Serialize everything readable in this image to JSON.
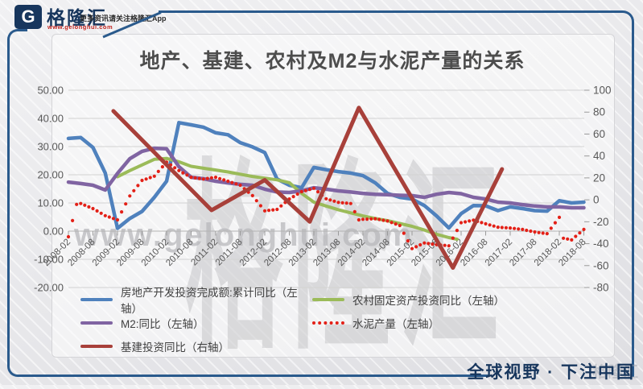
{
  "colors": {
    "frame": "#2a5a8c",
    "navy": "#17365d",
    "blue": "#4f81bd",
    "green": "#9bbb59",
    "purple": "#8064a2",
    "red": "#e32017",
    "darkred": "#a8403a"
  },
  "header": {
    "logo_letter": "G",
    "brand": "格隆汇",
    "brand_url": "www.gelonghui.com",
    "tagline": "更多资讯请关注格隆汇App"
  },
  "watermark": {
    "brand": "格隆汇",
    "url": "www.gelonghui.com",
    "corner": "格隆汇"
  },
  "footer": {
    "slogan": "全球视野 · 下注中国"
  },
  "chart_data": {
    "type": "line",
    "title": "地产、基建、农村及M2与水泥产量的关系",
    "x_axis_note": "monthly data from 2008-02 to 2018-08, x encoded as months since 2008-02",
    "x_tick_labels": [
      "2008-02",
      "2008-08",
      "2009-02",
      "2009-08",
      "2010-02",
      "2010-08",
      "2011-02",
      "2011-08",
      "2012-02",
      "2012-08",
      "2013-02",
      "2013-08",
      "2014-02",
      "2014-08",
      "2015-02",
      "2015-08",
      "2016-02",
      "2016-08",
      "2017-02",
      "2017-08",
      "2018-02",
      "2018-08"
    ],
    "left_axis": {
      "min": -20,
      "max": 50,
      "step": 10,
      "labels": [
        "50.00",
        "40.00",
        "30.00",
        "20.00",
        "10.00",
        "0.00",
        "-10.00",
        "-20.00"
      ]
    },
    "right_axis": {
      "min": -80,
      "max": 100,
      "step": 20,
      "labels": [
        "100",
        "80",
        "60",
        "40",
        "20",
        "0",
        "-20",
        "-40",
        "-60",
        "-80"
      ]
    },
    "grid": true,
    "legend_position": "bottom",
    "series": [
      {
        "id": "realestate",
        "name": "房地产开发投资完成额:累计同比（左轴）",
        "axis": "left",
        "style": "line",
        "color": "#4f81bd",
        "points": [
          [
            0,
            32.9
          ],
          [
            3,
            33.2
          ],
          [
            6,
            29.7
          ],
          [
            9,
            20.6
          ],
          [
            12,
            1.0
          ],
          [
            15,
            4.5
          ],
          [
            18,
            7.0
          ],
          [
            21,
            12.0
          ],
          [
            24,
            17.7
          ],
          [
            27,
            38.5
          ],
          [
            30,
            37.7
          ],
          [
            33,
            36.9
          ],
          [
            36,
            34.9
          ],
          [
            39,
            34.2
          ],
          [
            42,
            31.4
          ],
          [
            45,
            29.9
          ],
          [
            48,
            27.9
          ],
          [
            51,
            18.5
          ],
          [
            54,
            16.3
          ],
          [
            57,
            15.4
          ],
          [
            60,
            22.6
          ],
          [
            63,
            21.8
          ],
          [
            66,
            21.1
          ],
          [
            69,
            20.6
          ],
          [
            72,
            19.7
          ],
          [
            75,
            17.1
          ],
          [
            78,
            13.4
          ],
          [
            81,
            12.0
          ],
          [
            84,
            11.4
          ],
          [
            87,
            9.1
          ],
          [
            90,
            5.4
          ],
          [
            93,
            1.1
          ],
          [
            96,
            6.2
          ],
          [
            99,
            9.1
          ],
          [
            102,
            9.0
          ],
          [
            105,
            7.3
          ],
          [
            108,
            8.6
          ],
          [
            111,
            8.0
          ],
          [
            114,
            7.3
          ],
          [
            117,
            7.1
          ],
          [
            120,
            10.8
          ],
          [
            123,
            10.0
          ],
          [
            126,
            10.3
          ]
        ]
      },
      {
        "id": "rural",
        "name": "农村固定资产投资同比（左轴）",
        "axis": "left",
        "style": "line",
        "color": "#9bbb59",
        "points": [
          [
            12,
            19.3
          ],
          [
            15,
            21.5
          ],
          [
            18,
            23.5
          ],
          [
            21,
            25.5
          ],
          [
            24,
            25.8
          ],
          [
            27,
            24.6
          ],
          [
            30,
            23.0
          ],
          [
            33,
            22.3
          ],
          [
            36,
            21.7
          ],
          [
            39,
            21.0
          ],
          [
            42,
            20.2
          ],
          [
            45,
            19.4
          ],
          [
            48,
            18.8
          ],
          [
            51,
            18.2
          ],
          [
            54,
            17.2
          ],
          [
            57,
            13.4
          ],
          [
            60,
            10.3
          ],
          [
            63,
            8.9
          ],
          [
            66,
            7.6
          ],
          [
            69,
            6.5
          ],
          [
            72,
            5.4
          ],
          [
            75,
            4.5
          ],
          [
            78,
            3.7
          ],
          [
            81,
            2.7
          ],
          [
            84,
            1.7
          ],
          [
            87,
            0.4
          ],
          [
            90,
            -1.1
          ],
          [
            93,
            -2.3
          ],
          [
            95,
            -2.9
          ]
        ]
      },
      {
        "id": "m2",
        "name": "M2:同比（左轴）",
        "axis": "left",
        "style": "line",
        "color": "#8064a2",
        "points": [
          [
            0,
            17.4
          ],
          [
            3,
            16.9
          ],
          [
            6,
            16.3
          ],
          [
            9,
            14.6
          ],
          [
            12,
            20.5
          ],
          [
            15,
            25.7
          ],
          [
            18,
            28.3
          ],
          [
            21,
            29.4
          ],
          [
            24,
            29.2
          ],
          [
            27,
            22.9
          ],
          [
            30,
            19.1
          ],
          [
            33,
            18.6
          ],
          [
            36,
            17.7
          ],
          [
            39,
            17.1
          ],
          [
            42,
            16.6
          ],
          [
            45,
            16.3
          ],
          [
            48,
            14.9
          ],
          [
            51,
            13.9
          ],
          [
            54,
            13.7
          ],
          [
            57,
            14.3
          ],
          [
            60,
            15.4
          ],
          [
            63,
            14.9
          ],
          [
            66,
            14.3
          ],
          [
            69,
            13.9
          ],
          [
            72,
            13.4
          ],
          [
            75,
            13.1
          ],
          [
            78,
            12.9
          ],
          [
            81,
            12.7
          ],
          [
            84,
            12.6
          ],
          [
            87,
            12.0
          ],
          [
            90,
            13.1
          ],
          [
            93,
            13.7
          ],
          [
            96,
            13.3
          ],
          [
            99,
            12.0
          ],
          [
            102,
            11.4
          ],
          [
            105,
            10.3
          ],
          [
            108,
            10.0
          ],
          [
            111,
            9.4
          ],
          [
            114,
            8.9
          ],
          [
            117,
            8.6
          ],
          [
            120,
            8.6
          ],
          [
            123,
            8.3
          ],
          [
            126,
            8.3
          ]
        ]
      },
      {
        "id": "cement",
        "name": "水泥产量（左轴）",
        "axis": "left",
        "style": "dots",
        "color": "#e32017",
        "points": [
          [
            0,
            -2.0
          ],
          [
            2,
            9.5
          ],
          [
            3,
            9.8
          ],
          [
            6,
            8.0
          ],
          [
            9,
            5.5
          ],
          [
            12,
            4.0
          ],
          [
            15,
            12.5
          ],
          [
            18,
            18.0
          ],
          [
            21,
            19.5
          ],
          [
            24,
            24.5
          ],
          [
            27,
            21.5
          ],
          [
            30,
            19.1
          ],
          [
            33,
            18.5
          ],
          [
            36,
            19.1
          ],
          [
            39,
            17.7
          ],
          [
            42,
            16.3
          ],
          [
            45,
            12.6
          ],
          [
            48,
            7.2
          ],
          [
            51,
            7.7
          ],
          [
            54,
            11.4
          ],
          [
            57,
            14.0
          ],
          [
            60,
            15.2
          ],
          [
            63,
            11.5
          ],
          [
            66,
            10.2
          ],
          [
            69,
            9.8
          ],
          [
            71,
            4.0
          ],
          [
            72,
            4.2
          ],
          [
            75,
            4.4
          ],
          [
            78,
            3.6
          ],
          [
            81,
            2.0
          ],
          [
            84,
            -6.2
          ],
          [
            87,
            -4.2
          ],
          [
            90,
            -4.8
          ],
          [
            93,
            -5.2
          ],
          [
            96,
            3.0
          ],
          [
            99,
            3.9
          ],
          [
            102,
            2.6
          ],
          [
            105,
            1.4
          ],
          [
            108,
            1.1
          ],
          [
            111,
            0.6
          ],
          [
            114,
            -0.3
          ],
          [
            117,
            -0.9
          ],
          [
            120,
            4.9
          ],
          [
            121,
            -2.5
          ],
          [
            123,
            -3.1
          ],
          [
            126,
            0.6
          ]
        ]
      },
      {
        "id": "infra",
        "name": "基建投资同比（右轴）",
        "axis": "right",
        "style": "line",
        "color": "#a8403a",
        "points": [
          [
            11,
            81
          ],
          [
            35,
            -9.5
          ],
          [
            48,
            18
          ],
          [
            59,
            -20
          ],
          [
            71,
            84
          ],
          [
            94,
            -62
          ],
          [
            106,
            28
          ]
        ]
      }
    ]
  }
}
